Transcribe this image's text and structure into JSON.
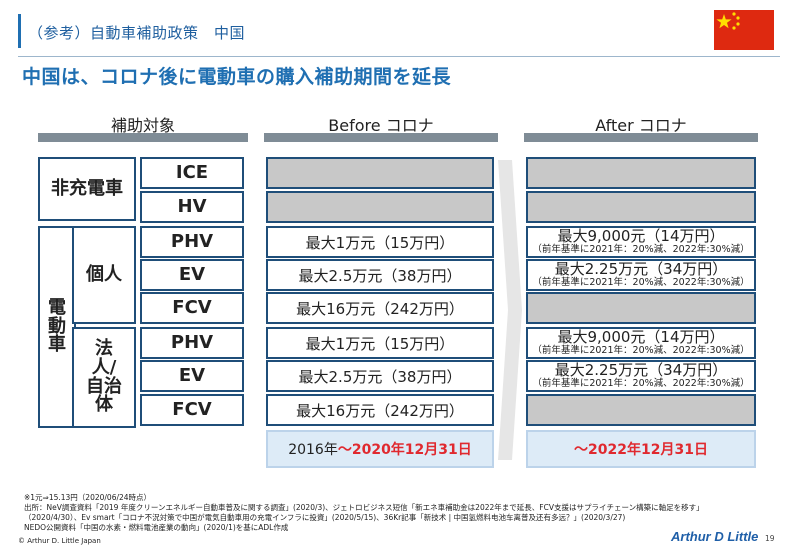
{
  "header": {
    "section_title": "（参考）自動車補助政策　中国",
    "headline": "中国は、コロナ後に電動車の購入補助期間を延長",
    "flag": "china-flag"
  },
  "columns": {
    "target": "補助対象",
    "before": "Before コロナ",
    "after": "After コロナ"
  },
  "groups": {
    "non_charge": "非充電車",
    "electric": "電動車",
    "individual": "個人",
    "corporate": "法人/自治体"
  },
  "vehicles": [
    "ICE",
    "HV",
    "PHV",
    "EV",
    "FCV",
    "PHV",
    "EV",
    "FCV"
  ],
  "before": [
    "",
    "",
    "最大1万元（15万円）",
    "最大2.5万元（38万円）",
    "最大16万元（242万円）",
    "最大1万元（15万円）",
    "最大2.5万元（38万円）",
    "最大16万元（242万円）"
  ],
  "after": [
    {
      "main": "",
      "sub": ""
    },
    {
      "main": "",
      "sub": ""
    },
    {
      "main": "最大9,000元（14万円）",
      "sub": "（前年基準に2021年：20%減、2022年:30%減）"
    },
    {
      "main": "最大2.25万元（34万円）",
      "sub": "（前年基準に2021年：20%減、2022年:30%減）"
    },
    {
      "main": "",
      "sub": ""
    },
    {
      "main": "最大9,000元（14万円）",
      "sub": "（前年基準に2021年：20%減、2022年:30%減）"
    },
    {
      "main": "最大2.25万元（34万円）",
      "sub": "（前年基準に2021年：20%減、2022年:30%減）"
    },
    {
      "main": "",
      "sub": ""
    }
  ],
  "period": {
    "before_start": "2016年",
    "before_end": "～2020年12月31日",
    "after_end": "～2022年12月31日"
  },
  "footnotes": [
    "※1元⇒15.13円（2020/06/24時点）",
    "出所：NeV調査資料「2019 年度クリーンエネルギー自動車普及に関する調査」(2020/3)、ジェトロビジネス短信「新エネ車補助金は2022年まで延長、FCV支援はサプライチェーン構築に軸足を移す」",
    "（2020/4/30）、Ev smart「コロナ不況対策で中国が電気自動車用の充電インフラに投資」(2020/5/15)、36Kr記事「新技术 | 中国氢燃料电池车离普及还有多远？」(2020/3/27)",
    "NEDO公開資料「中国の水素・燃料電池産業の動向」(2020/1)を基にADL作成"
  ],
  "footer": {
    "copyright": "© Arthur D. Little Japan",
    "logo": "Arthur D Little",
    "page": "19"
  }
}
